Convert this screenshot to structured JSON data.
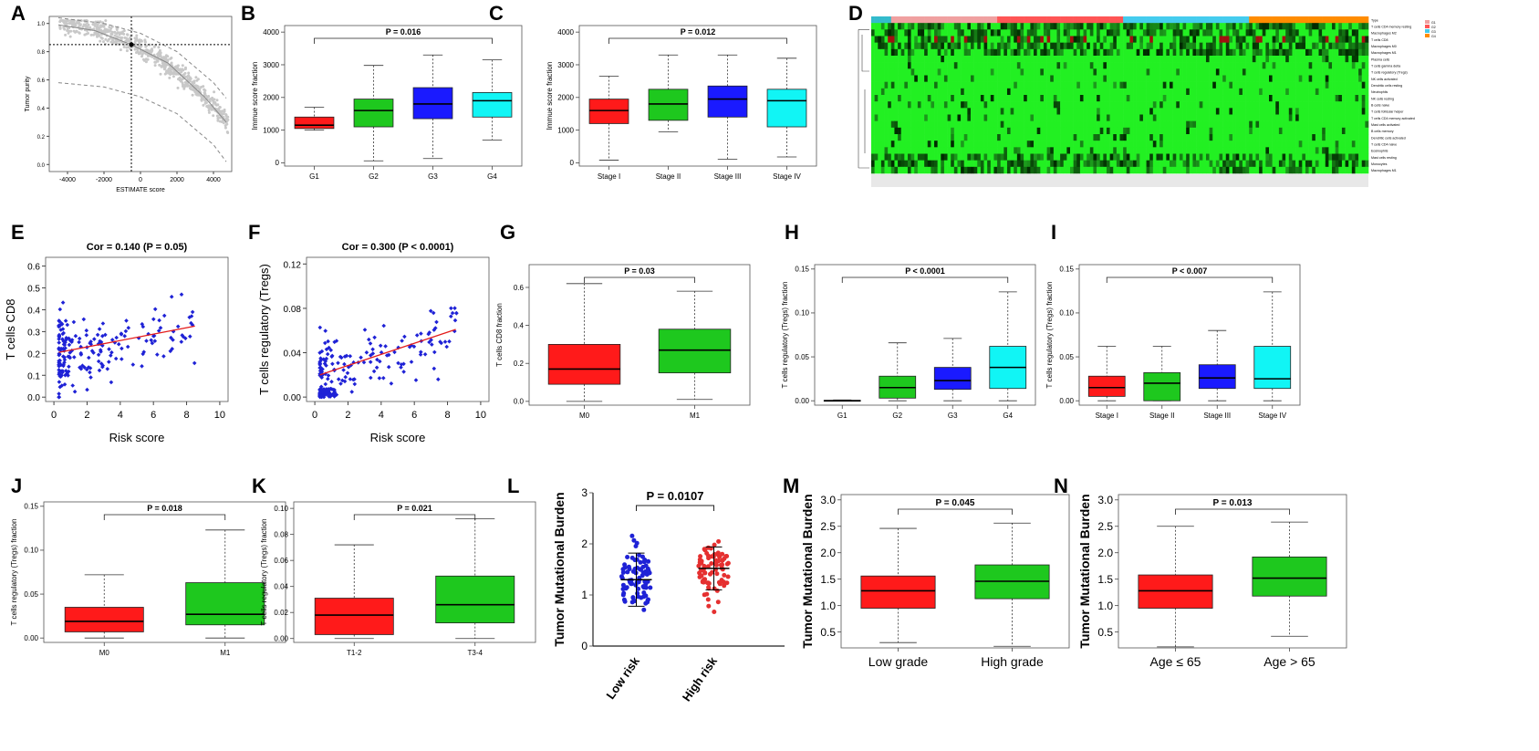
{
  "figure": {
    "colors": {
      "red": "#ff1a1a",
      "green": "#1ec81e",
      "blue": "#1a1aff",
      "cyan": "#11f5f5",
      "scatter_blue": "#1f22d6",
      "scatter_red": "#e53030",
      "fit_line": "#e31b1b",
      "heat_green": "#22f022"
    }
  },
  "chart_data": [
    {
      "panel": "A",
      "type": "scatter",
      "xlabel": "ESTIMATE score",
      "ylabel": "Tumor purity",
      "xlim": [
        -5000,
        5000
      ],
      "ylim": [
        -0.05,
        1.05
      ],
      "xticks": [
        "-4000",
        "-2000",
        "0",
        "2000",
        "4000"
      ],
      "yticks": [
        "0.0",
        "0.2",
        "0.4",
        "0.6",
        "0.8",
        "1.0"
      ],
      "ref_x": -500,
      "ref_y": 0.85,
      "fit_curve": [
        [
          -4500,
          0.99
        ],
        [
          -2500,
          0.95
        ],
        [
          -500,
          0.85
        ],
        [
          1500,
          0.72
        ],
        [
          3500,
          0.48
        ],
        [
          4700,
          0.3
        ]
      ],
      "upper_band": [
        [
          -4500,
          1.04
        ],
        [
          -2000,
          1.0
        ],
        [
          0,
          0.93
        ],
        [
          2000,
          0.8
        ],
        [
          4000,
          0.58
        ],
        [
          4700,
          0.47
        ]
      ],
      "lower_band": [
        [
          -4500,
          0.58
        ],
        [
          -2000,
          0.55
        ],
        [
          0,
          0.48
        ],
        [
          2000,
          0.36
        ],
        [
          4000,
          0.14
        ],
        [
          4700,
          0.02
        ]
      ]
    },
    {
      "panel": "B",
      "type": "box",
      "title": "P = 0.016",
      "ylabel": "Immue score fraction",
      "ylim": [
        -100,
        4200
      ],
      "yticks": [
        "0",
        "1000",
        "2000",
        "3000",
        "4000"
      ],
      "categories": [
        "G1",
        "G2",
        "G3",
        "G4"
      ],
      "boxes": [
        {
          "name": "G1",
          "min": 1000,
          "q1": 1050,
          "median": 1150,
          "q3": 1400,
          "max": 1700,
          "color": "red"
        },
        {
          "name": "G2",
          "min": 60,
          "q1": 1100,
          "median": 1600,
          "q3": 1950,
          "max": 2980,
          "color": "green"
        },
        {
          "name": "G3",
          "min": 130,
          "q1": 1350,
          "median": 1800,
          "q3": 2300,
          "max": 3300,
          "color": "blue"
        },
        {
          "name": "G4",
          "min": 700,
          "q1": 1400,
          "median": 1900,
          "q3": 2150,
          "max": 3150,
          "color": "cyan"
        }
      ],
      "bracket": [
        1,
        4
      ]
    },
    {
      "panel": "C",
      "type": "box",
      "title": "P = 0.012",
      "ylabel": "Immue score fraction",
      "ylim": [
        -100,
        4200
      ],
      "yticks": [
        "0",
        "1000",
        "2000",
        "3000",
        "4000"
      ],
      "categories": [
        "Stage I",
        "Stage II",
        "Stage III",
        "Stage IV"
      ],
      "boxes": [
        {
          "name": "Stage I",
          "min": 80,
          "q1": 1200,
          "median": 1600,
          "q3": 1950,
          "max": 2650,
          "color": "red"
        },
        {
          "name": "Stage II",
          "min": 950,
          "q1": 1300,
          "median": 1800,
          "q3": 2250,
          "max": 3300,
          "color": "green"
        },
        {
          "name": "Stage III",
          "min": 110,
          "q1": 1400,
          "median": 1950,
          "q3": 2350,
          "max": 3300,
          "color": "blue"
        },
        {
          "name": "Stage IV",
          "min": 180,
          "q1": 1100,
          "median": 1900,
          "q3": 2250,
          "max": 3200,
          "color": "cyan"
        }
      ],
      "bracket": [
        1,
        4
      ]
    },
    {
      "panel": "D",
      "type": "heatmap",
      "rows": [
        "Type",
        "T cells CD4 memory resting",
        "Macrophages M2",
        "T cells CD8",
        "Macrophages M0",
        "Macrophages M1",
        "Plasma cells",
        "T cells gamma delta",
        "T cells regulatory (Tregs)",
        "NK cells activated",
        "Dendritic cells resting",
        "Neutrophils",
        "NK cells resting",
        "B cells naive",
        "T cells follicular helper",
        "T cells CD4 memory activated",
        "Mast cells activated",
        "B cells memory",
        "Dendritic cells activated",
        "T cells CD4 naive",
        "Eosinophils",
        "Mast cells resting",
        "Monocytes",
        "Macrophages M1"
      ],
      "legend": [
        "G1",
        "G2",
        "G3",
        "G4"
      ]
    },
    {
      "panel": "E",
      "type": "scatter",
      "title": "Cor = 0.140 (P = 0.05)",
      "xlabel": "Risk score",
      "ylabel": "T cells CD8",
      "xlim": [
        -0.5,
        10.5
      ],
      "ylim": [
        -0.02,
        0.64
      ],
      "xticks": [
        "0",
        "2",
        "4",
        "6",
        "8",
        "10"
      ],
      "yticks": [
        "0.0",
        "0.1",
        "0.2",
        "0.3",
        "0.4",
        "0.5",
        "0.6"
      ],
      "fit": [
        [
          0.3,
          0.205
        ],
        [
          8.5,
          0.325
        ]
      ]
    },
    {
      "panel": "F",
      "type": "scatter",
      "title": "Cor = 0.300 (P < 0.0001)",
      "xlabel": "Risk score",
      "ylabel": "T cells regulatory (Tregs)",
      "xlim": [
        -0.5,
        10.5
      ],
      "ylim": [
        -0.004,
        0.126
      ],
      "xticks": [
        "0",
        "2",
        "4",
        "6",
        "8",
        "10"
      ],
      "yticks": [
        "0.00",
        "0.04",
        "0.08",
        "0.12"
      ],
      "fit": [
        [
          0.3,
          0.02
        ],
        [
          8.5,
          0.061
        ]
      ]
    },
    {
      "panel": "G",
      "type": "box",
      "title": "P = 0.03",
      "ylabel": "T cells CD8 fraction",
      "ylim": [
        -0.02,
        0.72
      ],
      "yticks": [
        "0.0",
        "0.2",
        "0.4",
        "0.6"
      ],
      "categories": [
        "M0",
        "M1"
      ],
      "boxes": [
        {
          "name": "M0",
          "min": 0.0,
          "q1": 0.09,
          "median": 0.17,
          "q3": 0.3,
          "max": 0.62,
          "color": "red"
        },
        {
          "name": "M1",
          "min": 0.01,
          "q1": 0.15,
          "median": 0.27,
          "q3": 0.38,
          "max": 0.58,
          "color": "green"
        }
      ],
      "bracket": [
        1,
        2
      ]
    },
    {
      "panel": "H",
      "type": "box",
      "title": "P < 0.0001",
      "ylabel": "T cells regulatory (Tregs) fraction",
      "ylim": [
        -0.005,
        0.155
      ],
      "yticks": [
        "0.00",
        "0.05",
        "0.10",
        "0.15"
      ],
      "categories": [
        "G1",
        "G2",
        "G3",
        "G4"
      ],
      "boxes": [
        {
          "name": "G1",
          "min": 0.0,
          "q1": 0.0,
          "median": 0.0,
          "q3": 0.0005,
          "max": 0.001,
          "color": "red"
        },
        {
          "name": "G2",
          "min": 0.0,
          "q1": 0.003,
          "median": 0.015,
          "q3": 0.028,
          "max": 0.066,
          "color": "green"
        },
        {
          "name": "G3",
          "min": 0.0,
          "q1": 0.013,
          "median": 0.023,
          "q3": 0.038,
          "max": 0.071,
          "color": "blue"
        },
        {
          "name": "G4",
          "min": 0.0,
          "q1": 0.014,
          "median": 0.038,
          "q3": 0.062,
          "max": 0.124,
          "color": "cyan"
        }
      ],
      "bracket": [
        1,
        4
      ]
    },
    {
      "panel": "I",
      "type": "box",
      "title": "P < 0.007",
      "ylabel": "T cells regulatory (Tregs) fraction",
      "ylim": [
        -0.005,
        0.155
      ],
      "yticks": [
        "0.00",
        "0.05",
        "0.10",
        "0.15"
      ],
      "categories": [
        "Stage I",
        "Stage II",
        "Stage III",
        "Stage IV"
      ],
      "boxes": [
        {
          "name": "Stage I",
          "min": 0.0,
          "q1": 0.005,
          "median": 0.015,
          "q3": 0.028,
          "max": 0.062,
          "color": "red"
        },
        {
          "name": "Stage II",
          "min": 0.0,
          "q1": 0.0,
          "median": 0.02,
          "q3": 0.032,
          "max": 0.062,
          "color": "green"
        },
        {
          "name": "Stage III",
          "min": 0.0,
          "q1": 0.014,
          "median": 0.026,
          "q3": 0.041,
          "max": 0.08,
          "color": "blue"
        },
        {
          "name": "Stage IV",
          "min": 0.0,
          "q1": 0.014,
          "median": 0.025,
          "q3": 0.062,
          "max": 0.124,
          "color": "cyan"
        }
      ],
      "bracket": [
        1,
        4
      ]
    },
    {
      "panel": "J",
      "type": "box",
      "title": "P = 0.018",
      "ylabel": "T cells regulatory (Tregs) fraction",
      "ylim": [
        -0.005,
        0.155
      ],
      "yticks": [
        "0.00",
        "0.05",
        "0.10",
        "0.15"
      ],
      "categories": [
        "M0",
        "M1"
      ],
      "boxes": [
        {
          "name": "M0",
          "min": 0.0,
          "q1": 0.007,
          "median": 0.019,
          "q3": 0.035,
          "max": 0.072,
          "color": "red"
        },
        {
          "name": "M1",
          "min": 0.0,
          "q1": 0.015,
          "median": 0.027,
          "q3": 0.063,
          "max": 0.123,
          "color": "green"
        }
      ],
      "bracket": [
        1,
        2
      ]
    },
    {
      "panel": "K",
      "type": "box",
      "title": "P = 0.021",
      "ylabel": "T cells regulatory (Tregs) fraction",
      "ylim": [
        -0.003,
        0.105
      ],
      "yticks": [
        "0.00",
        "0.02",
        "0.04",
        "0.06",
        "0.08",
        "0.10"
      ],
      "categories": [
        "T1-2",
        "T3-4"
      ],
      "boxes": [
        {
          "name": "T1-2",
          "min": 0.0,
          "q1": 0.003,
          "median": 0.018,
          "q3": 0.031,
          "max": 0.072,
          "color": "red"
        },
        {
          "name": "T3-4",
          "min": 0.0,
          "q1": 0.012,
          "median": 0.026,
          "q3": 0.048,
          "max": 0.092,
          "color": "green"
        }
      ],
      "bracket": [
        1,
        2
      ]
    },
    {
      "panel": "L",
      "type": "scatter",
      "title": "P = 0.0107",
      "ylabel": "Tumor Mutational Burden",
      "ylim": [
        0,
        3
      ],
      "yticks": [
        "0",
        "1",
        "2",
        "3"
      ],
      "categories": [
        "Low risk",
        "High risk"
      ],
      "groups": [
        {
          "name": "Low risk",
          "mean": 1.3,
          "sd_low": 0.78,
          "sd_high": 1.82,
          "color": "scatter_blue"
        },
        {
          "name": "High risk",
          "mean": 1.52,
          "sd_low": 1.1,
          "sd_high": 1.94,
          "color": "scatter_red"
        }
      ]
    },
    {
      "panel": "M",
      "type": "box",
      "title": "P = 0.045",
      "ylabel": "Tumor Mutational Burden",
      "ylim": [
        0.2,
        3.1
      ],
      "yticks": [
        "0.5",
        "1.0",
        "1.5",
        "2.0",
        "2.5",
        "3.0"
      ],
      "categories": [
        "Low grade",
        "High grade"
      ],
      "boxes": [
        {
          "name": "Low grade",
          "min": 0.3,
          "q1": 0.95,
          "median": 1.28,
          "q3": 1.56,
          "max": 2.46,
          "color": "red"
        },
        {
          "name": "High grade",
          "min": 0.23,
          "q1": 1.13,
          "median": 1.46,
          "q3": 1.77,
          "max": 2.56,
          "color": "green"
        }
      ],
      "bracket": [
        1,
        2
      ]
    },
    {
      "panel": "N",
      "type": "box",
      "title": "P = 0.013",
      "ylabel": "Tumor Mutational Burden",
      "ylim": [
        0.2,
        3.1
      ],
      "yticks": [
        "0.5",
        "1.0",
        "1.5",
        "2.0",
        "2.5",
        "3.0"
      ],
      "categories": [
        "Age ≤ 65",
        "Age > 65"
      ],
      "boxes": [
        {
          "name": "Age ≤ 65",
          "min": 0.22,
          "q1": 0.95,
          "median": 1.28,
          "q3": 1.58,
          "max": 2.5,
          "color": "red"
        },
        {
          "name": "Age > 65",
          "min": 0.42,
          "q1": 1.18,
          "median": 1.52,
          "q3": 1.92,
          "max": 2.58,
          "color": "green"
        }
      ],
      "bracket": [
        1,
        2
      ]
    }
  ]
}
